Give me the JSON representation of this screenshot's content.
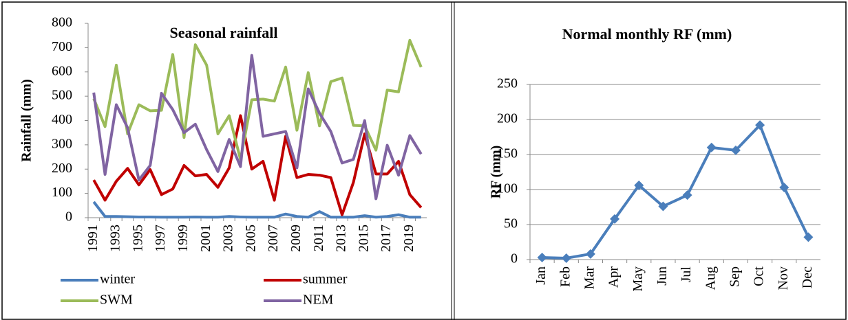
{
  "chart_data": [
    {
      "type": "line",
      "title": "Seasonal rainfall",
      "y_label": "Rainfall (mm)",
      "categories": [
        "1991",
        null,
        "1993",
        null,
        "1995",
        null,
        "1997",
        null,
        "1999",
        null,
        "2001",
        null,
        "2003",
        null,
        "2005",
        null,
        "2007",
        null,
        "2009",
        null,
        "2011",
        null,
        "2013",
        null,
        "2015",
        null,
        "2017",
        null,
        "2019",
        null
      ],
      "series": [
        {
          "name": "winter",
          "color": "#4a7ebb",
          "values": [
            65,
            5,
            5,
            4,
            3,
            3,
            2,
            2,
            2,
            3,
            2,
            2,
            5,
            3,
            2,
            2,
            2,
            15,
            5,
            2,
            25,
            2,
            2,
            2,
            8,
            2,
            5,
            12,
            2,
            2
          ]
        },
        {
          "name": "summer",
          "color": "#c00000",
          "values": [
            155,
            72,
            150,
            203,
            135,
            198,
            95,
            118,
            215,
            172,
            178,
            125,
            205,
            420,
            200,
            232,
            72,
            335,
            165,
            178,
            175,
            165,
            12,
            145,
            345,
            180,
            180,
            232,
            95,
            42
          ]
        },
        {
          "name": "SWM",
          "color": "#9bbb59",
          "values": [
            490,
            375,
            628,
            345,
            465,
            440,
            442,
            672,
            330,
            712,
            628,
            345,
            420,
            240,
            485,
            488,
            480,
            620,
            360,
            597,
            378,
            560,
            575,
            380,
            378,
            278,
            525,
            518,
            730,
            620
          ]
        },
        {
          "name": "NEM",
          "color": "#8064a2",
          "values": [
            515,
            178,
            465,
            370,
            155,
            215,
            512,
            445,
            350,
            385,
            280,
            190,
            322,
            210,
            668,
            335,
            345,
            355,
            205,
            530,
            430,
            355,
            225,
            240,
            400,
            78,
            298,
            175,
            338,
            262
          ]
        }
      ],
      "ylim": [
        0,
        800
      ],
      "yticks": [
        0,
        100,
        200,
        300,
        400,
        500,
        600,
        700,
        800
      ],
      "grid": false,
      "legend": "bottom",
      "markers": false
    },
    {
      "type": "line",
      "title": "Normal monthly RF (mm)",
      "y_label": "RF (mm)",
      "categories": [
        "Jan",
        "Feb",
        "Mar",
        "Apr",
        "May",
        "Jun",
        "Jul",
        "Aug",
        "Sep",
        "Oct",
        "Nov",
        "Dec"
      ],
      "values": [
        3,
        2,
        8,
        58,
        106,
        76,
        92,
        160,
        156,
        192,
        103,
        32
      ],
      "color": "#4a7ebb",
      "ylim": [
        0,
        250
      ],
      "yticks": [
        0,
        50,
        100,
        150,
        200,
        250
      ],
      "grid": true,
      "markers": true
    }
  ]
}
